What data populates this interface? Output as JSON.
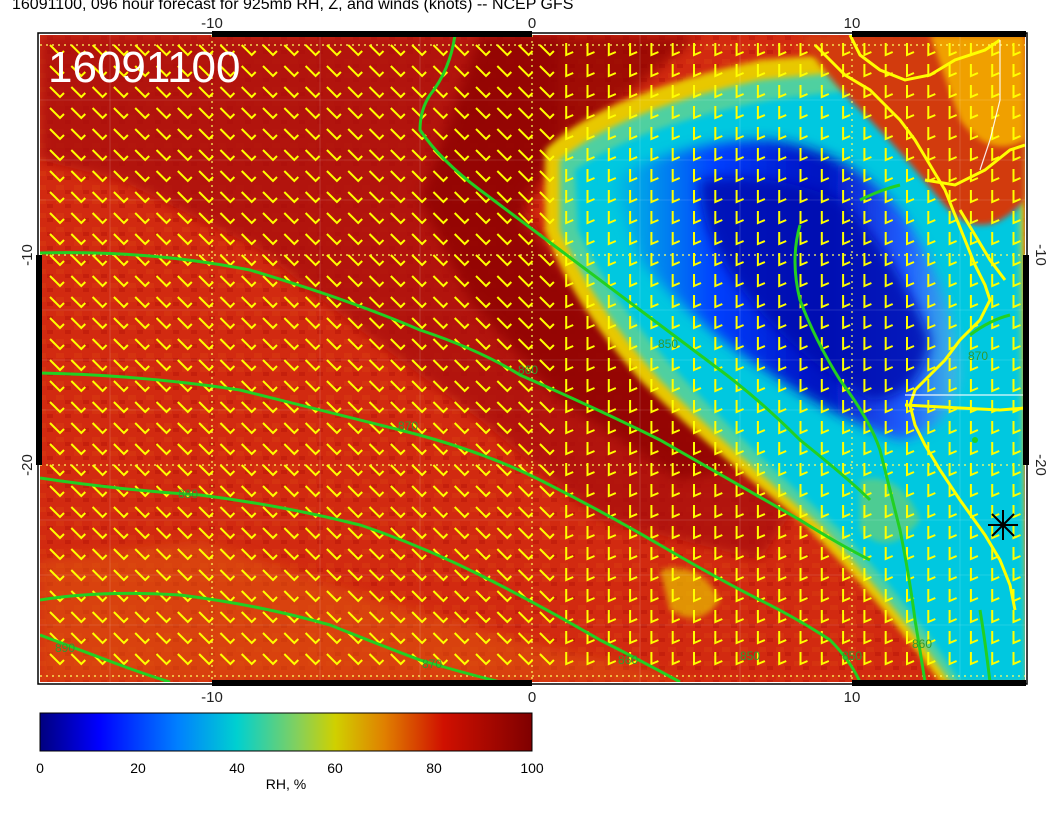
{
  "title": "16091100, 096 hour forecast for 925mb RH, Z, and winds (knots) -- NCEP GFS",
  "stamp": "16091100",
  "axes": {
    "top_ticks": [
      "-10",
      "0",
      "10"
    ],
    "bottom_ticks": [
      "-10",
      "0",
      "10"
    ],
    "left_ticks": [
      "-10",
      "-20"
    ],
    "right_ticks": [
      "-10",
      "-20"
    ]
  },
  "contour_labels": [
    "850",
    "860",
    "870",
    "880",
    "890",
    "870",
    "860",
    "850",
    "850",
    "860",
    "870"
  ],
  "colorbar": {
    "label": "RH, %",
    "ticks": [
      "0",
      "20",
      "40",
      "60",
      "80",
      "100"
    ],
    "colors": [
      "#00007f",
      "#0000ff",
      "#00bfff",
      "#2fd6c8",
      "#c8c800",
      "#e07000",
      "#cc0000",
      "#7f0000"
    ]
  },
  "colors": {
    "contour": "#22d022",
    "barbs": "#ffff00",
    "coastline": "#ffff00",
    "marker": "#000000"
  },
  "marker_icon": "asterisk-icon"
}
